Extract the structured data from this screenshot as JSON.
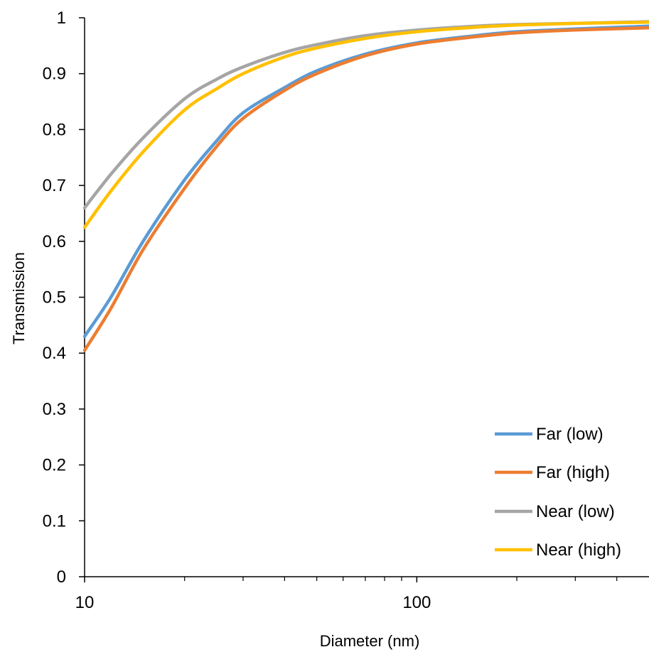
{
  "chart_data": {
    "type": "line",
    "xlabel": "Diameter (nm)",
    "ylabel": "Transmission",
    "xscale": "log",
    "xlim": [
      10,
      500
    ],
    "ylim": [
      0,
      1
    ],
    "x_ticks": [
      {
        "value": 10,
        "label": "10"
      },
      {
        "value": 100,
        "label": "100"
      }
    ],
    "y_ticks": [
      {
        "value": 0,
        "label": "0"
      },
      {
        "value": 0.1,
        "label": "0.1"
      },
      {
        "value": 0.2,
        "label": "0.2"
      },
      {
        "value": 0.3,
        "label": "0.3"
      },
      {
        "value": 0.4,
        "label": "0.4"
      },
      {
        "value": 0.5,
        "label": "0.5"
      },
      {
        "value": 0.6,
        "label": "0.6"
      },
      {
        "value": 0.7,
        "label": "0.7"
      },
      {
        "value": 0.8,
        "label": "0.8"
      },
      {
        "value": 0.9,
        "label": "0.9"
      },
      {
        "value": 1,
        "label": "1"
      }
    ],
    "minor_x_ticks": [
      20,
      30,
      40,
      50,
      60,
      70,
      80,
      90,
      200,
      300,
      400
    ],
    "grid": false,
    "legend_position": "bottom-right",
    "x": [
      10,
      12,
      15,
      20,
      25,
      30,
      40,
      50,
      70,
      100,
      150,
      200,
      300,
      500
    ],
    "series": [
      {
        "name": "Far (low)",
        "color": "#5B9BD5",
        "values": [
          0.43,
          0.5,
          0.6,
          0.71,
          0.78,
          0.83,
          0.875,
          0.905,
          0.935,
          0.955,
          0.968,
          0.975,
          0.98,
          0.985
        ]
      },
      {
        "name": "Far (high)",
        "color": "#ED7D31",
        "values": [
          0.405,
          0.48,
          0.585,
          0.695,
          0.77,
          0.82,
          0.87,
          0.9,
          0.932,
          0.953,
          0.966,
          0.973,
          0.978,
          0.982
        ]
      },
      {
        "name": "Near (low)",
        "color": "#A5A5A5",
        "values": [
          0.66,
          0.72,
          0.785,
          0.855,
          0.89,
          0.912,
          0.938,
          0.952,
          0.968,
          0.978,
          0.985,
          0.988,
          0.99,
          0.993
        ]
      },
      {
        "name": "Near (high)",
        "color": "#FFC000",
        "values": [
          0.625,
          0.69,
          0.76,
          0.835,
          0.873,
          0.9,
          0.93,
          0.946,
          0.963,
          0.975,
          0.983,
          0.987,
          0.99,
          0.992
        ]
      }
    ]
  }
}
